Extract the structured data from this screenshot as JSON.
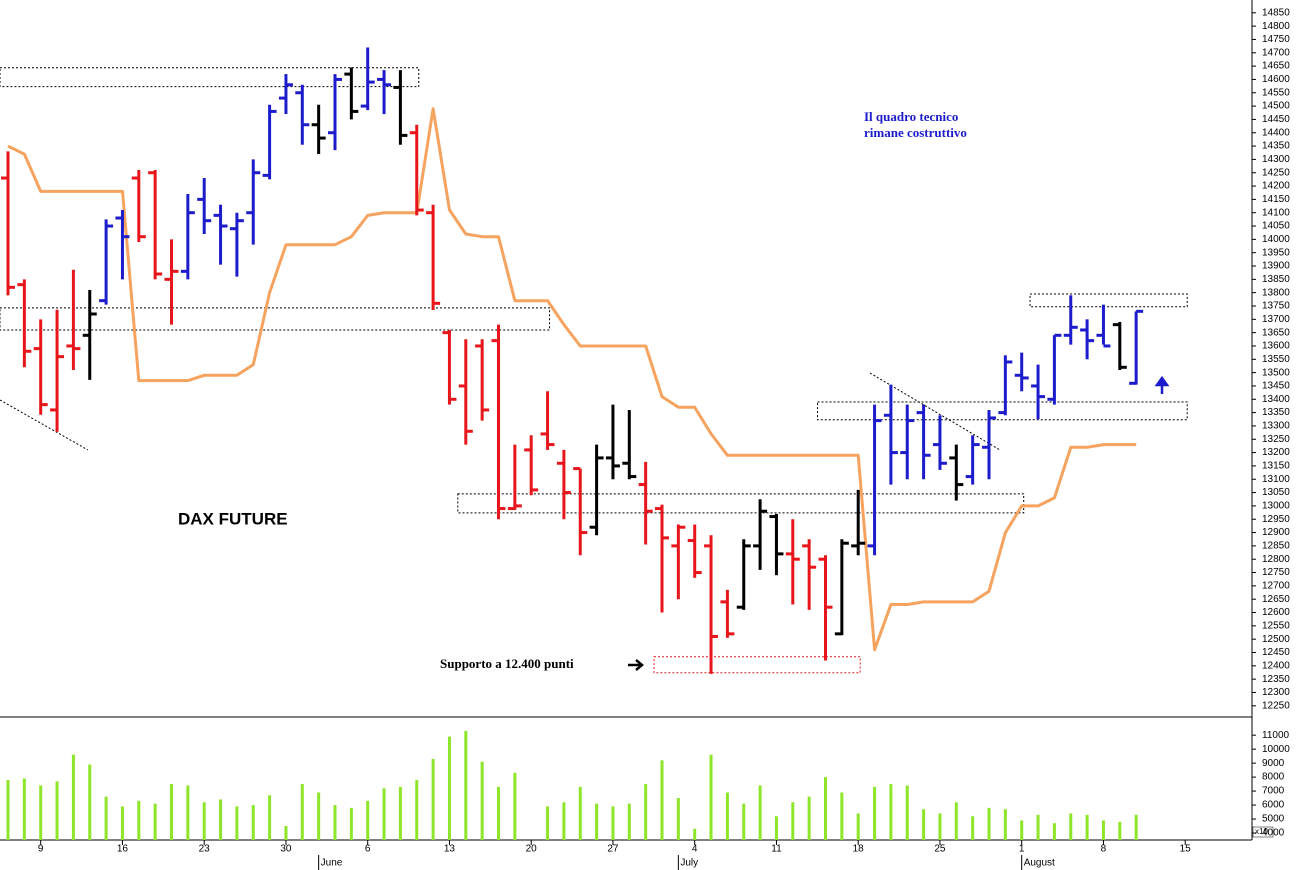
{
  "chart_data": [
    {
      "type": "ohlc",
      "title": "DAX FUTURE",
      "note": [
        "Il quadro tecnico",
        "rimane costruttivo"
      ],
      "support_label": "Supporto a 12.400 punti",
      "open": [
        14230,
        13830,
        13590,
        13360,
        13600,
        13640,
        13770,
        14080,
        14230,
        14250,
        13850,
        13880,
        14150,
        14090,
        14040,
        14100,
        14240,
        14530,
        14550,
        14430,
        14400,
        14620,
        14500,
        14600,
        14570,
        14400,
        14100,
        13650,
        13450,
        13600,
        13620,
        12990,
        13210,
        13270,
        13160,
        13140,
        12920,
        13180,
        13160,
        13080,
        12990,
        12850,
        12870,
        12850,
        12640,
        12620,
        12850,
        12960,
        12820,
        12850,
        12800,
        12520,
        12850,
        12850,
        13340,
        13200,
        13350,
        13230,
        13180,
        13110,
        13220,
        13350,
        13490,
        13450,
        13400,
        13640,
        13660,
        13640,
        13680,
        13460
      ],
      "high": [
        14330,
        13850,
        13700,
        13736,
        13886,
        13810,
        14075,
        14110,
        14260,
        14260,
        14000,
        14170,
        14230,
        14130,
        14100,
        14300,
        14505,
        14620,
        14580,
        14505,
        14620,
        14645,
        14720,
        14635,
        14635,
        14430,
        14130,
        13660,
        13625,
        13625,
        13680,
        13230,
        13265,
        13430,
        13210,
        13140,
        13230,
        13380,
        13360,
        13165,
        13005,
        12930,
        12930,
        12890,
        12685,
        12875,
        13025,
        12970,
        12950,
        12875,
        12815,
        12875,
        13060,
        13380,
        13455,
        13380,
        13380,
        13340,
        13230,
        13265,
        13360,
        13565,
        13575,
        13530,
        13640,
        13790,
        13700,
        13755,
        13690,
        13730
      ],
      "low": [
        13790,
        13520,
        13342,
        13278,
        13510,
        13473,
        13755,
        13850,
        13990,
        13850,
        13680,
        13850,
        14020,
        13905,
        13860,
        13980,
        14225,
        14470,
        14355,
        14320,
        14335,
        14450,
        14485,
        14470,
        14355,
        14090,
        13735,
        13380,
        13230,
        13320,
        12950,
        12985,
        13040,
        13210,
        12950,
        12815,
        12890,
        13100,
        13100,
        12855,
        12600,
        12650,
        12730,
        12370,
        12505,
        12610,
        12760,
        12740,
        12630,
        12610,
        12420,
        12515,
        12815,
        12815,
        13080,
        13100,
        13100,
        13135,
        13020,
        13080,
        13100,
        13340,
        13430,
        13325,
        13380,
        13605,
        13550,
        13605,
        13510,
        13455
      ],
      "close": [
        13820,
        13580,
        13380,
        13560,
        13590,
        13720,
        14050,
        14010,
        14010,
        13870,
        13880,
        14100,
        14070,
        14050,
        14070,
        14250,
        14480,
        14580,
        14430,
        14380,
        14600,
        14480,
        14590,
        14580,
        14390,
        14110,
        13760,
        13400,
        13280,
        13360,
        12990,
        13000,
        13060,
        13230,
        13050,
        12900,
        13180,
        13150,
        13110,
        12980,
        12880,
        12920,
        12750,
        12510,
        12520,
        12850,
        12980,
        12820,
        12800,
        12770,
        12620,
        12860,
        12860,
        13320,
        13200,
        13320,
        13190,
        13160,
        13080,
        13230,
        13330,
        13540,
        13480,
        13410,
        13640,
        13670,
        13620,
        13600,
        13520,
        13730
      ],
      "colors": [
        "#e8161a",
        "#e8161a",
        "#e8161a",
        "#e8161a",
        "#e8161a",
        "#000000",
        "#1c1ccc",
        "#1c1ccc",
        "#e8161a",
        "#e8161a",
        "#e8161a",
        "#1c1ccc",
        "#1c1ccc",
        "#1c1ccc",
        "#1c1ccc",
        "#1c1ccc",
        "#1c1ccc",
        "#1c1ccc",
        "#1c1ccc",
        "#000000",
        "#1c1ccc",
        "#000000",
        "#1c1ccc",
        "#1c1ccc",
        "#000000",
        "#e8161a",
        "#e8161a",
        "#e8161a",
        "#e8161a",
        "#e8161a",
        "#e8161a",
        "#e8161a",
        "#e8161a",
        "#e8161a",
        "#e8161a",
        "#e8161a",
        "#000000",
        "#000000",
        "#000000",
        "#e8161a",
        "#e8161a",
        "#e8161a",
        "#e8161a",
        "#e8161a",
        "#e8161a",
        "#000000",
        "#000000",
        "#000000",
        "#e8161a",
        "#e8161a",
        "#e8161a",
        "#000000",
        "#000000",
        "#1c1ccc",
        "#1c1ccc",
        "#1c1ccc",
        "#1c1ccc",
        "#1c1ccc",
        "#000000",
        "#1c1ccc",
        "#1c1ccc",
        "#1c1ccc",
        "#1c1ccc",
        "#1c1ccc",
        "#1c1ccc",
        "#1c1ccc",
        "#1c1ccc",
        "#1c1ccc",
        "#000000",
        "#1c1ccc"
      ],
      "line": {
        "color": "#f5a35e",
        "values": [
          14350,
          14320,
          14180,
          14180,
          14180,
          14180,
          14180,
          14180,
          13470,
          13470,
          13470,
          13470,
          13490,
          13490,
          13490,
          13530,
          13800,
          13980,
          13980,
          13980,
          13980,
          14010,
          14090,
          14100,
          14100,
          14100,
          14490,
          14110,
          14020,
          14010,
          14010,
          13770,
          13770,
          13770,
          13680,
          13600,
          13600,
          13600,
          13600,
          13600,
          13410,
          13370,
          13370,
          13270,
          13190,
          13190,
          13190,
          13190,
          13190,
          13190,
          13190,
          13190,
          13190,
          12460,
          12630,
          12630,
          12640,
          12640,
          12640,
          12640,
          12680,
          12900,
          13000,
          13000,
          13030,
          13220,
          13220,
          13230,
          13230,
          13230
        ]
      },
      "zones": [
        {
          "low": 14573,
          "high": 14644,
          "start": 0,
          "end": 25,
          "color": "#000000"
        },
        {
          "low": 13660,
          "high": 13743,
          "start": 0,
          "end": 33,
          "color": "#000000"
        },
        {
          "low": 12974,
          "high": 13045,
          "start": 28,
          "end": 62,
          "color": "#000000"
        },
        {
          "low": 13323,
          "high": 13390,
          "start": 50,
          "end": 72,
          "color": "#000000"
        },
        {
          "low": 13747,
          "high": 13795,
          "start": 63,
          "end": 72,
          "color": "#000000"
        },
        {
          "low": 12374,
          "high": 12434,
          "start": 40,
          "end": 52,
          "color": "#e8161a"
        }
      ],
      "ylim": [
        12208,
        14898
      ],
      "yticks": [
        12250,
        12300,
        12350,
        12400,
        12450,
        12500,
        12550,
        12600,
        12650,
        12700,
        12750,
        12800,
        12850,
        12900,
        12950,
        13000,
        13050,
        13100,
        13150,
        13200,
        13250,
        13300,
        13350,
        13400,
        13450,
        13500,
        13550,
        13600,
        13650,
        13700,
        13750,
        13800,
        13850,
        13900,
        13950,
        14000,
        14050,
        14100,
        14150,
        14200,
        14250,
        14300,
        14350,
        14400,
        14450,
        14500,
        14550,
        14600,
        14650,
        14700,
        14750,
        14800,
        14850
      ],
      "xlim": [
        -0.5,
        76
      ],
      "xticks": [
        {
          "value": 2,
          "label": "9"
        },
        {
          "value": 7,
          "label": "16"
        },
        {
          "value": 12,
          "label": "23"
        },
        {
          "value": 17,
          "label": "30"
        },
        {
          "value": 22,
          "label": "6"
        },
        {
          "value": 27,
          "label": "13"
        },
        {
          "value": 32,
          "label": "20"
        },
        {
          "value": 37,
          "label": "27"
        },
        {
          "value": 42,
          "label": "4"
        },
        {
          "value": 47,
          "label": "11"
        },
        {
          "value": 52,
          "label": "18"
        },
        {
          "value": 57,
          "label": "25"
        },
        {
          "value": 62,
          "label": "1"
        },
        {
          "value": 67,
          "label": "8"
        },
        {
          "value": 72,
          "label": "15"
        }
      ],
      "month_ticks": [
        {
          "value": 19,
          "label": "June"
        },
        {
          "value": 41,
          "label": "July"
        },
        {
          "value": 62,
          "label": "August"
        }
      ]
    },
    {
      "type": "bar",
      "color": "#8ee62a",
      "axis_note": "x10",
      "values": [
        7800,
        7900,
        7400,
        7700,
        9600,
        8900,
        6600,
        5900,
        6300,
        6100,
        7500,
        7400,
        6200,
        6400,
        5900,
        6000,
        6700,
        4500,
        7500,
        6900,
        6000,
        5800,
        6300,
        7200,
        7300,
        7800,
        9300,
        10900,
        11300,
        9100,
        7300,
        8300,
        null,
        5900,
        6200,
        7300,
        6100,
        5900,
        6100,
        7500,
        9200,
        6500,
        4300,
        9600,
        6900,
        6100,
        7400,
        5200,
        6200,
        6600,
        8000,
        6900,
        5400,
        7300,
        7500,
        7400,
        5700,
        5400,
        6200,
        5200,
        5800,
        5700,
        4900,
        5300,
        4700,
        5400,
        5300,
        4900,
        4800,
        5300
      ],
      "ylim": [
        3500,
        12300
      ],
      "yticks": [
        4000,
        5000,
        6000,
        7000,
        8000,
        9000,
        10000,
        11000
      ]
    }
  ]
}
